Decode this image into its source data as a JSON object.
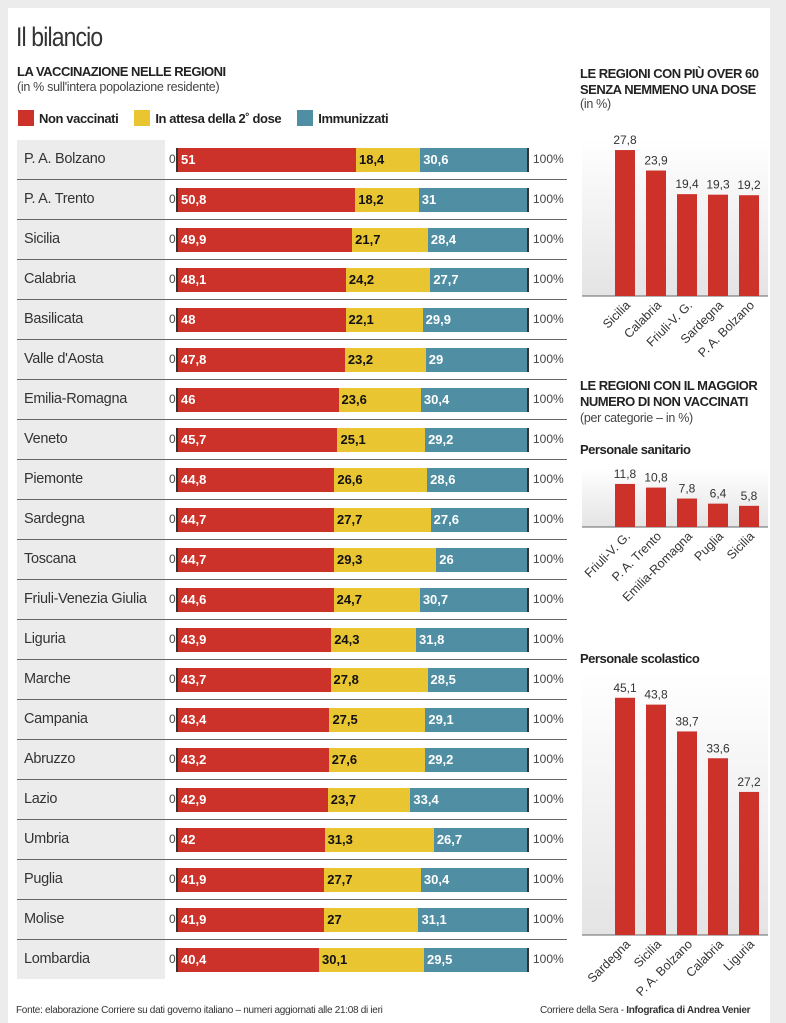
{
  "title": "Il bilancio",
  "main": {
    "heading": "LA VACCINAZIONE NELLE REGIONI",
    "subheading": "(in % sull'intera popolazione residente)",
    "axis_start": "0",
    "axis_end": "100%"
  },
  "colors": {
    "non_vaccinati": "#cc3229",
    "attesa": "#eac532",
    "immunizzati": "#4f8ea3"
  },
  "chart_data": [
    {
      "type": "bar",
      "stacked": true,
      "orientation": "horizontal",
      "title": "LA VACCINAZIONE NELLE REGIONI",
      "subtitle": "(in % sull'intera popolazione residente)",
      "legend": "top-left",
      "xlim": [
        0,
        100
      ],
      "categories": [
        "P. A. Bolzano",
        "P. A. Trento",
        "Sicilia",
        "Calabria",
        "Basilicata",
        "Valle d'Aosta",
        "Emilia-Romagna",
        "Veneto",
        "Piemonte",
        "Sardegna",
        "Toscana",
        "Friuli-Venezia Giulia",
        "Liguria",
        "Marche",
        "Campania",
        "Abruzzo",
        "Lazio",
        "Umbria",
        "Puglia",
        "Molise",
        "Lombardia"
      ],
      "series": [
        {
          "name": "Non vaccinati",
          "values": [
            "51",
            "50,8",
            "49,9",
            "48,1",
            "48",
            "47,8",
            "46",
            "45,7",
            "44,8",
            "44,7",
            "44,7",
            "44,6",
            "43,9",
            "43,7",
            "43,4",
            "43,2",
            "42,9",
            "42",
            "41,9",
            "41,9",
            "40,4"
          ]
        },
        {
          "name": "In attesa della 2˚ dose",
          "values": [
            "18,4",
            "18,2",
            "21,7",
            "24,2",
            "22,1",
            "23,2",
            "23,6",
            "25,1",
            "26,6",
            "27,7",
            "29,3",
            "24,7",
            "24,3",
            "27,8",
            "27,5",
            "27,6",
            "23,7",
            "31,3",
            "27,7",
            "27",
            "30,1"
          ]
        },
        {
          "name": "Immunizzati",
          "values": [
            "30,6",
            "31",
            "28,4",
            "27,7",
            "29,9",
            "29",
            "30,4",
            "29,2",
            "28,6",
            "27,6",
            "26",
            "30,7",
            "31,8",
            "28,5",
            "29,1",
            "29,2",
            "33,4",
            "26,7",
            "30,4",
            "31,1",
            "29,5"
          ]
        }
      ]
    },
    {
      "type": "bar",
      "title": "LE REGIONI CON PIÙ OVER 60 SENZA NEMMENO UNA DOSE",
      "subtitle": "(in %)",
      "categories": [
        "Sicilia",
        "Calabria",
        "Friuli-V. G.",
        "Sardegna",
        "P. A. Bolzano"
      ],
      "values": [
        "27,8",
        "23,9",
        "19,4",
        "19,3",
        "19,2"
      ]
    },
    {
      "type": "bar",
      "title": "LE REGIONI CON IL MAGGIOR NUMERO DI NON VACCINATI",
      "subtitle": "(per categorie – in %)",
      "group": "Personale sanitario",
      "categories": [
        "Friuli-V. G.",
        "P. A. Trento",
        "Emilia-Romagna",
        "Puglia",
        "Sicilia"
      ],
      "values": [
        "11,8",
        "10,8",
        "7,8",
        "6,4",
        "5,8"
      ]
    },
    {
      "type": "bar",
      "group": "Personale scolastico",
      "categories": [
        "Sardegna",
        "Sicilia",
        "P. A. Bolzano",
        "Calabria",
        "Liguria"
      ],
      "values": [
        "45,1",
        "43,8",
        "38,7",
        "33,6",
        "27,2"
      ]
    }
  ],
  "footer": {
    "source": "Fonte: elaborazione Corriere su dati governo italiano – numeri aggiornati alle 21:08 di ieri",
    "credit_prefix": "Corriere della Sera - ",
    "credit": "Infografica di Andrea Venier"
  }
}
